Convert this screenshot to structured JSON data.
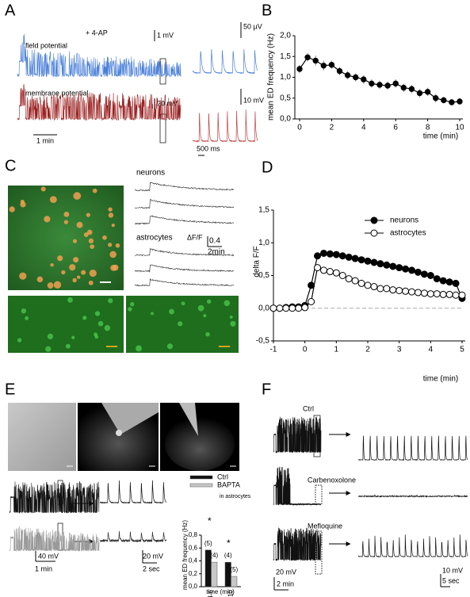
{
  "panel_labels": [
    "A",
    "B",
    "C",
    "D",
    "E",
    "F"
  ],
  "A": {
    "drug": "+ 4-AP",
    "field": "field potential",
    "membrane": "membrane potential",
    "scale_field": "1 mV",
    "scale_zoom_field": "50 µV",
    "scale_membrane": "20 mV",
    "scale_zoom_membrane": "10 mV",
    "time_main": "1 min",
    "time_zoom": "500 ms"
  },
  "C": {
    "neurons": "neurons",
    "astrocytes": "astrocytes",
    "dff": "ΔF/F",
    "dff_scale": "0.4",
    "time": "2min"
  },
  "E": {
    "scale_v": "40 mV",
    "time": "1 min",
    "scale_v_zoom": "20 mV",
    "time_zoom": "2 sec",
    "legend_note": "in astrocytes",
    "star": "*"
  },
  "F": {
    "ctrl": "Ctrl",
    "cbx": "Carbenoxolone",
    "mfq": "Mefloquine",
    "scale_v": "20 mV",
    "time": "2 min",
    "scale_v_zoom": "10 mV",
    "time_zoom": "5 sec"
  },
  "chart_data": [
    {
      "type": "line",
      "xlabel": "time (min)",
      "ylabel": "mean ED frequency (Hz)",
      "x": [
        0,
        0.5,
        1,
        1.5,
        2,
        2.5,
        3,
        3.5,
        4,
        4.5,
        5,
        5.5,
        6,
        6.5,
        7,
        7.5,
        8,
        8.5,
        9,
        9.5,
        10
      ],
      "series": [
        {
          "color": "#000000",
          "values": [
            1.2,
            1.48,
            1.4,
            1.28,
            1.3,
            1.15,
            1.05,
            1.0,
            0.95,
            0.85,
            0.82,
            0.8,
            0.85,
            0.75,
            0.72,
            0.62,
            0.65,
            0.5,
            0.45,
            0.4,
            0.42
          ],
          "errors": [
            0.1,
            0.1,
            0.12,
            0.12,
            0.1,
            0.1,
            0.1,
            0.1,
            0.1,
            0.1,
            0.1,
            0.1,
            0.1,
            0.1,
            0.1,
            0.1,
            0.1,
            0.1,
            0.08,
            0.08,
            0.08
          ]
        }
      ],
      "xlim": [
        0,
        10
      ],
      "xticks": [
        0,
        2,
        4,
        6,
        8,
        10
      ],
      "ylim": [
        0,
        2
      ],
      "yticks": [
        {
          "value": 0,
          "label": "0,0"
        },
        {
          "value": 0.5,
          "label": "0,5"
        },
        {
          "value": 1,
          "label": "1,0"
        },
        {
          "value": 1.5,
          "label": "1,5"
        },
        {
          "value": 2,
          "label": "2,0"
        }
      ]
    },
    {
      "type": "line",
      "xlabel": "time (min)",
      "ylabel": "delta F/F",
      "hline": 0,
      "x": [
        -1,
        -0.8,
        -0.6,
        -0.4,
        -0.2,
        0,
        0.2,
        0.4,
        0.6,
        0.8,
        1,
        1.2,
        1.4,
        1.6,
        1.8,
        2,
        2.2,
        2.4,
        2.6,
        2.8,
        3,
        3.2,
        3.4,
        3.6,
        3.8,
        4,
        4.2,
        4.4,
        4.6,
        4.8,
        5
      ],
      "series": [
        {
          "name": "neurons",
          "color": "#000000",
          "values": [
            0,
            0,
            0.01,
            0.02,
            0.02,
            0.04,
            0.35,
            0.8,
            0.84,
            0.83,
            0.82,
            0.8,
            0.78,
            0.76,
            0.74,
            0.72,
            0.7,
            0.68,
            0.66,
            0.64,
            0.62,
            0.6,
            0.58,
            0.55,
            0.52,
            0.5,
            0.45,
            0.42,
            0.4,
            0.38,
            0.15
          ]
        },
        {
          "name": "astrocytes",
          "color": "#ffffff",
          "values": [
            0,
            0,
            0,
            0,
            0,
            0.01,
            0.1,
            0.62,
            0.58,
            0.56,
            0.54,
            0.5,
            0.45,
            0.42,
            0.38,
            0.35,
            0.33,
            0.3,
            0.3,
            0.28,
            0.27,
            0.26,
            0.25,
            0.24,
            0.23,
            0.22,
            0.22,
            0.21,
            0.21,
            0.2,
            0.2
          ]
        }
      ],
      "xlim": [
        -1,
        5
      ],
      "xticks": [
        -1,
        0,
        1,
        2,
        3,
        4,
        5
      ],
      "ylim": [
        -0.5,
        1.5
      ],
      "yticks": [
        {
          "value": -0.5,
          "label": "-0,5"
        },
        {
          "value": 0,
          "label": "0,0"
        },
        {
          "value": 0.5,
          "label": "0,5"
        },
        {
          "value": 1,
          "label": "1,0"
        },
        {
          "value": 1.5,
          "label": "1,5"
        }
      ]
    },
    {
      "type": "bar",
      "xlabel": "time (min)",
      "ylabel": "mean ED frequency (Hz)",
      "categories": [
        "4-6",
        "8-10"
      ],
      "series": [
        {
          "name": "Ctrl",
          "color": "#111111",
          "values": [
            0.57,
            0.38
          ],
          "n_labels": [
            "(5)",
            "(4)"
          ]
        },
        {
          "name": "BAPTA",
          "color": "#c8c8c8",
          "values": [
            0.38,
            0.16
          ],
          "n_labels": [
            "(4)",
            "(5)"
          ]
        }
      ],
      "ylim": [
        0,
        0.8
      ],
      "yticks": [
        {
          "value": 0,
          "label": "0,0"
        },
        {
          "value": 0.2,
          "label": "0,2"
        },
        {
          "value": 0.4,
          "label": "0,4"
        },
        {
          "value": 0.6,
          "label": "0,6"
        },
        {
          "value": 0.8,
          "label": "0,8"
        }
      ]
    }
  ]
}
